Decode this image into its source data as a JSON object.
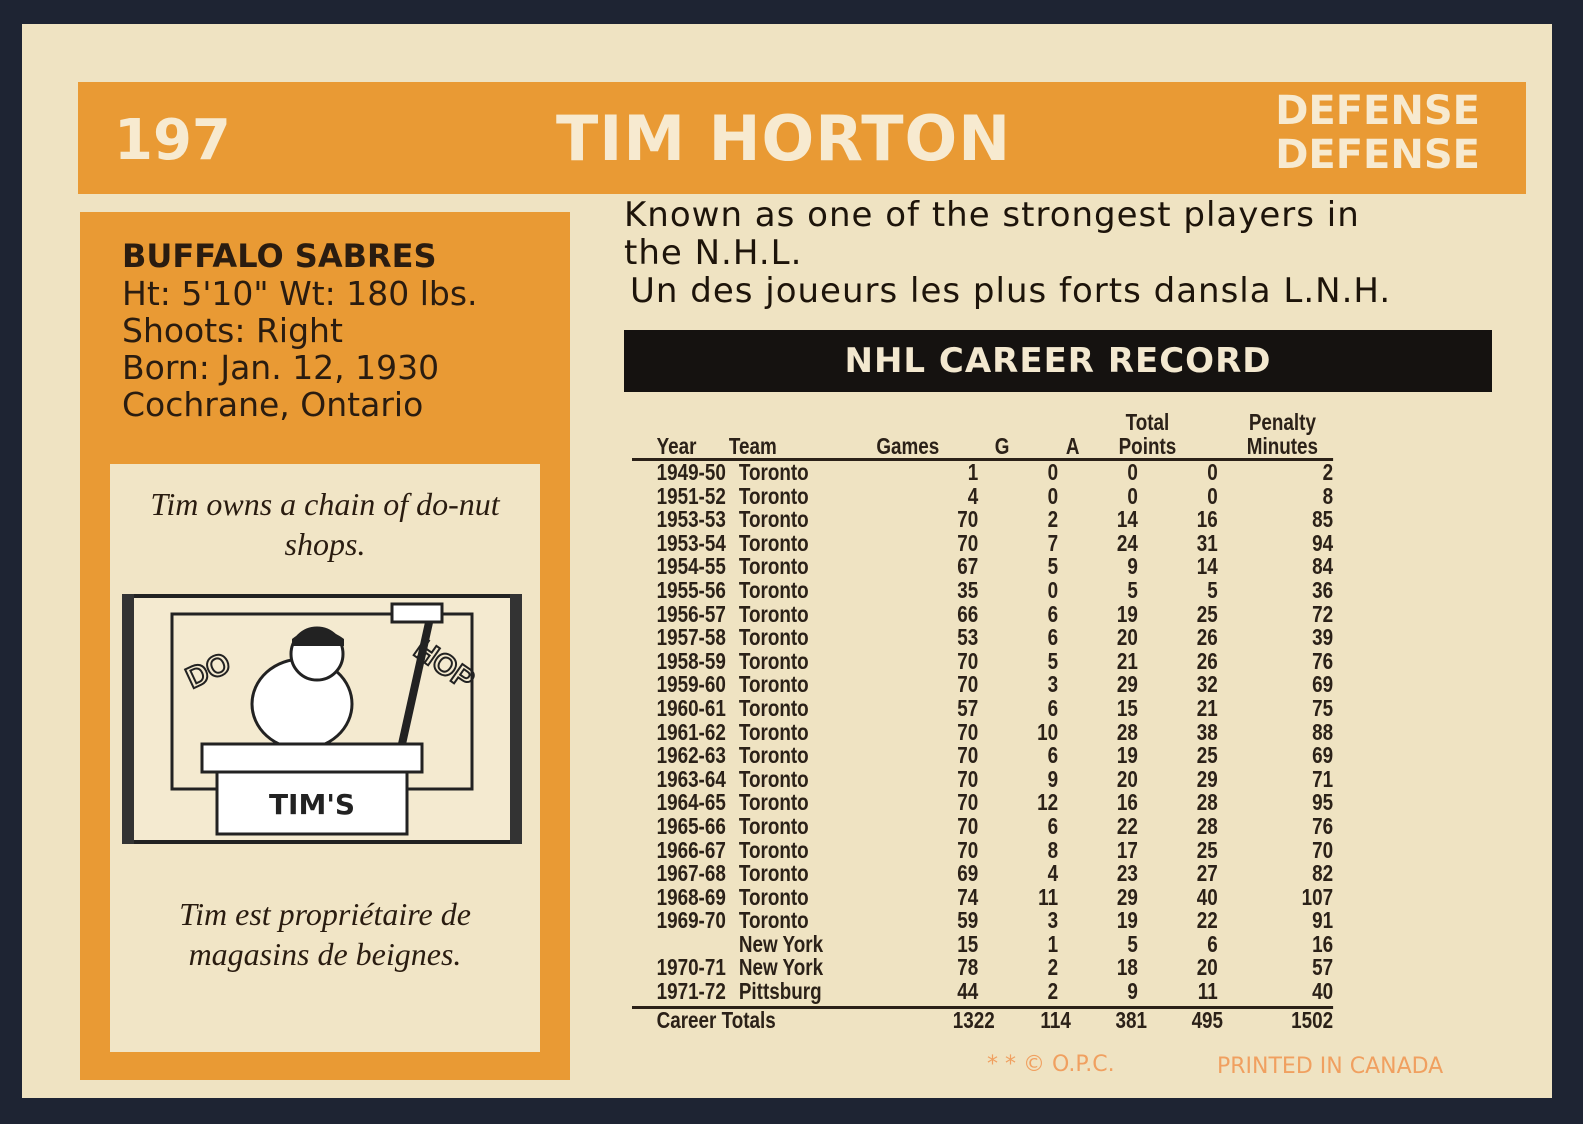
{
  "card": {
    "number": "197",
    "name": "TIM HORTON",
    "position_en": "DEFENSE",
    "position_fr": "DEFENSE"
  },
  "bio": {
    "team": "BUFFALO SABRES",
    "size": "Ht: 5'10\" Wt: 180 lbs.",
    "shoots": "Shoots: Right",
    "born": "Born: Jan. 12, 1930",
    "birthplace": "Cochrane, Ontario"
  },
  "trivia": {
    "en": "Tim owns a chain of do-nut shops.",
    "fr": "Tim est propriétaire de magasins de beignes.",
    "cartoon_sign": "DO-NUT SHOP",
    "cartoon_desk": "TIM'S"
  },
  "blurb": {
    "en_line1": "Known as one of the strongest players in",
    "en_line2": "the N.H.L.",
    "fr": "Un des joueurs les plus forts dansla L.N.H."
  },
  "record": {
    "title": "NHL CAREER RECORD",
    "headers": [
      "Year",
      "Team",
      "Games",
      "G",
      "A",
      "Total Points",
      "Penalty Minutes"
    ],
    "rows": [
      [
        "1949-50",
        "Toronto",
        "1",
        "0",
        "0",
        "0",
        "2"
      ],
      [
        "1951-52",
        "Toronto",
        "4",
        "0",
        "0",
        "0",
        "8"
      ],
      [
        "1953-53",
        "Toronto",
        "70",
        "2",
        "14",
        "16",
        "85"
      ],
      [
        "1953-54",
        "Toronto",
        "70",
        "7",
        "24",
        "31",
        "94"
      ],
      [
        "1954-55",
        "Toronto",
        "67",
        "5",
        "9",
        "14",
        "84"
      ],
      [
        "1955-56",
        "Toronto",
        "35",
        "0",
        "5",
        "5",
        "36"
      ],
      [
        "1956-57",
        "Toronto",
        "66",
        "6",
        "19",
        "25",
        "72"
      ],
      [
        "1957-58",
        "Toronto",
        "53",
        "6",
        "20",
        "26",
        "39"
      ],
      [
        "1958-59",
        "Toronto",
        "70",
        "5",
        "21",
        "26",
        "76"
      ],
      [
        "1959-60",
        "Toronto",
        "70",
        "3",
        "29",
        "32",
        "69"
      ],
      [
        "1960-61",
        "Toronto",
        "57",
        "6",
        "15",
        "21",
        "75"
      ],
      [
        "1961-62",
        "Toronto",
        "70",
        "10",
        "28",
        "38",
        "88"
      ],
      [
        "1962-63",
        "Toronto",
        "70",
        "6",
        "19",
        "25",
        "69"
      ],
      [
        "1963-64",
        "Toronto",
        "70",
        "9",
        "20",
        "29",
        "71"
      ],
      [
        "1964-65",
        "Toronto",
        "70",
        "12",
        "16",
        "28",
        "95"
      ],
      [
        "1965-66",
        "Toronto",
        "70",
        "6",
        "22",
        "28",
        "76"
      ],
      [
        "1966-67",
        "Toronto",
        "70",
        "8",
        "17",
        "25",
        "70"
      ],
      [
        "1967-68",
        "Toronto",
        "69",
        "4",
        "23",
        "27",
        "82"
      ],
      [
        "1968-69",
        "Toronto",
        "74",
        "11",
        "29",
        "40",
        "107"
      ],
      [
        "1969-70",
        "Toronto",
        "59",
        "3",
        "19",
        "22",
        "91"
      ],
      [
        "",
        "New York",
        "15",
        "1",
        "5",
        "6",
        "16"
      ],
      [
        "1970-71",
        "New York",
        "78",
        "2",
        "18",
        "20",
        "57"
      ],
      [
        "1971-72",
        "Pittsburg",
        "44",
        "2",
        "9",
        "11",
        "40"
      ]
    ],
    "totals": [
      "Career Totals",
      "",
      "1322",
      "114",
      "381",
      "495",
      "1502"
    ]
  },
  "footer": {
    "copyright": "* * © O.P.C.",
    "printed": "PRINTED IN CANADA"
  },
  "colors": {
    "orange": "#e99a34",
    "paper": "#efe3c2",
    "ink": "#2b2118",
    "background": "#1e2433"
  }
}
